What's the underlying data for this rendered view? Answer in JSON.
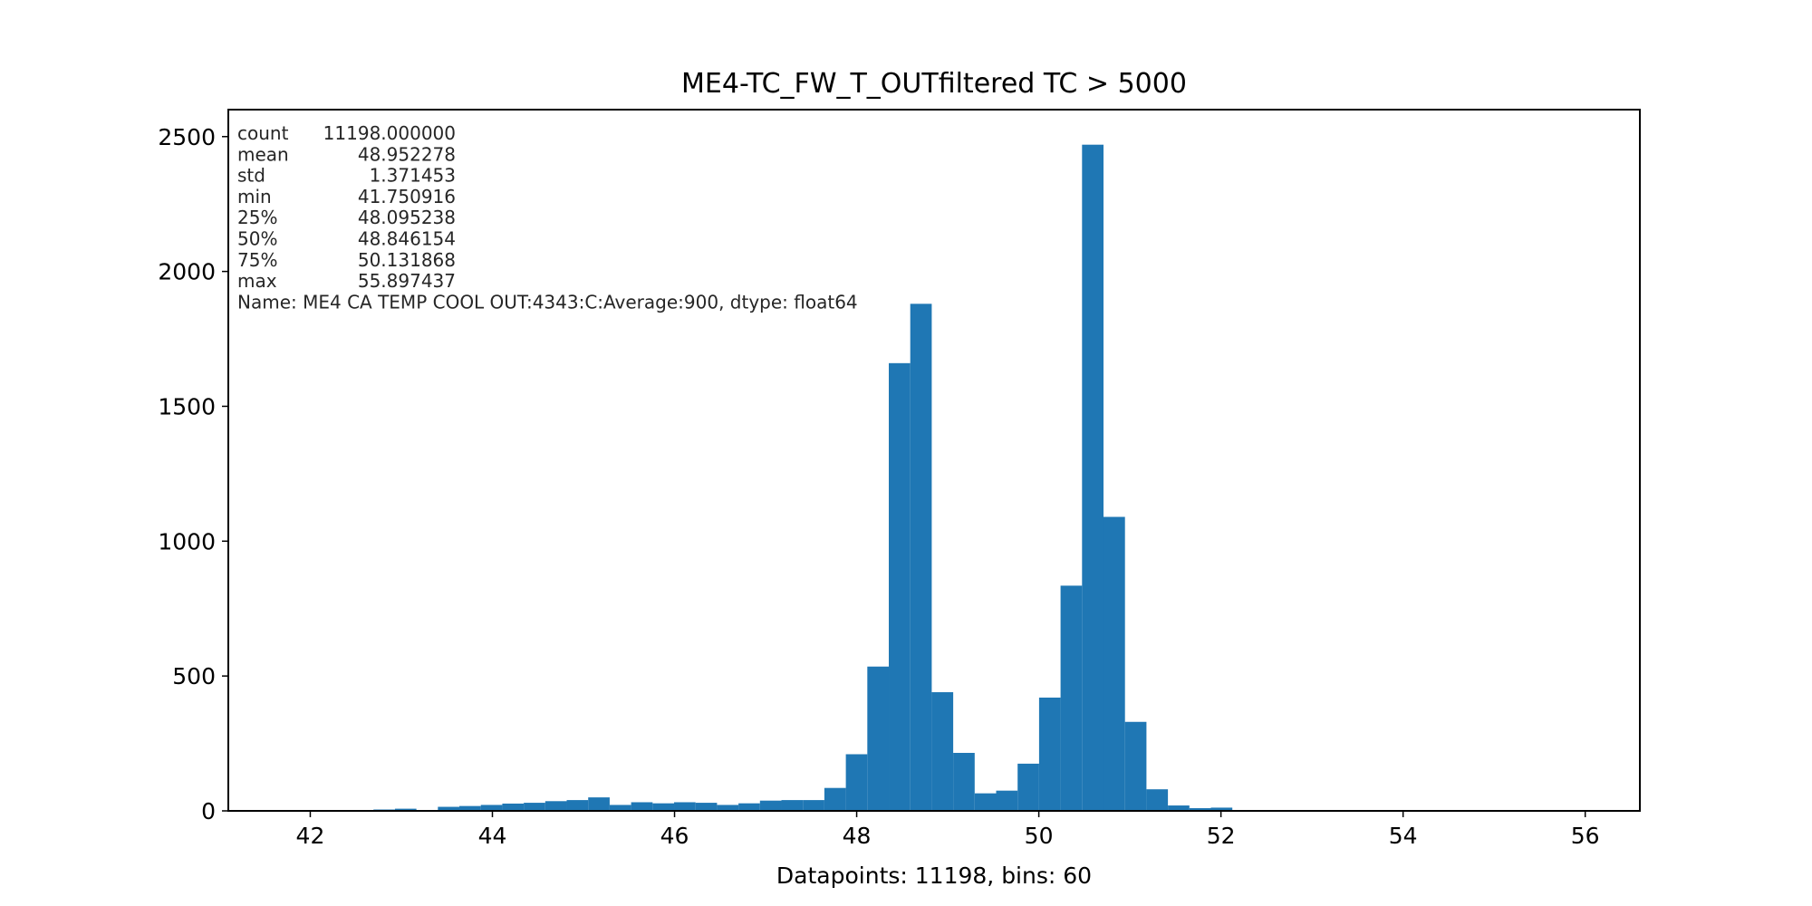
{
  "chart_data": {
    "type": "bar",
    "title": "ME4-TC_FW_T_OUTfiltered TC > 5000",
    "xlabel": "Datapoints: 11198, bins: 60",
    "ylabel": "",
    "xlim": [
      41.1,
      56.6
    ],
    "ylim": [
      0,
      2600
    ],
    "xticks": [
      42,
      44,
      46,
      48,
      50,
      52,
      54,
      56
    ],
    "yticks": [
      0,
      500,
      1000,
      1500,
      2000,
      2500
    ],
    "bin_start": 41.750916,
    "bin_end": 55.897437,
    "bin_count": 60,
    "color": "#1f77b4",
    "grid": false,
    "stats_lines": [
      {
        "label": "count",
        "value": "11198.000000"
      },
      {
        "label": "mean",
        "value": "48.952278"
      },
      {
        "label": "std",
        "value": "1.371453"
      },
      {
        "label": "min",
        "value": "41.750916"
      },
      {
        "label": "25%",
        "value": "48.095238"
      },
      {
        "label": "50%",
        "value": "48.846154"
      },
      {
        "label": "75%",
        "value": "50.131868"
      },
      {
        "label": "max",
        "value": "55.897437"
      }
    ],
    "stats_name_line": "Name: ME4 CA TEMP COOL OUT:4343:C:Average:900, dtype: float64",
    "values": [
      1,
      0,
      2,
      1,
      5,
      8,
      2,
      15,
      18,
      22,
      27,
      30,
      36,
      40,
      50,
      22,
      32,
      28,
      32,
      30,
      22,
      28,
      38,
      40,
      40,
      85,
      210,
      535,
      1660,
      1880,
      440,
      215,
      65,
      75,
      175,
      420,
      835,
      2470,
      1090,
      330,
      80,
      20,
      10,
      12,
      0,
      0,
      0,
      0,
      0,
      0,
      0,
      0,
      0,
      0,
      0,
      0,
      0,
      0,
      0,
      1
    ]
  }
}
